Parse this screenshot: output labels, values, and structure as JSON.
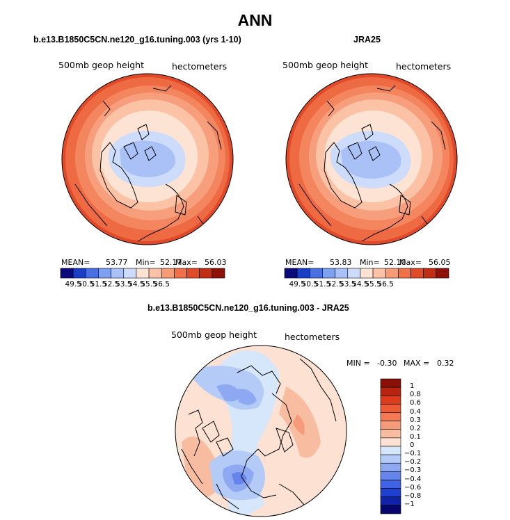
{
  "title": "ANN",
  "panels": [
    {
      "id": "model",
      "title": "b.e13.B1850C5CN.ne120_g16.tuning.003 (yrs 1-10)",
      "variable_label": "500mb geop height",
      "units_label": "hectometers",
      "stats": {
        "mean_label": "MEAN=",
        "mean": "53.77",
        "min_label": "Min=",
        "min": "52.17",
        "max_label": "Max=",
        "max": "56.03"
      }
    },
    {
      "id": "obs",
      "title": "JRA25",
      "variable_label": "500mb geop height",
      "units_label": "hectometers",
      "stats": {
        "mean_label": "MEAN=",
        "mean": "53.83",
        "min_label": "Min=",
        "min": "52.10",
        "max_label": "Max=",
        "max": "56.05"
      }
    },
    {
      "id": "diff",
      "title": "b.e13.B1850C5CN.ne120_g16.tuning.003 - JRA25",
      "variable_label": "500mb geop height",
      "units_label": "hectometers",
      "stats": {
        "min_label": "MIN =",
        "min": "-0.30",
        "max_label": "MAX =",
        "max": "0.32"
      }
    }
  ],
  "colorbar_top": {
    "ticks": [
      "49.5",
      "50.5",
      "51.5",
      "52.5",
      "53.5",
      "54.5",
      "55.5",
      "56.5"
    ],
    "colors": [
      "#0a0a7a",
      "#1a3fc4",
      "#4a6fe0",
      "#7f9ff0",
      "#a9c1f7",
      "#cddcfa",
      "#fde3d3",
      "#fbc2a6",
      "#f79b76",
      "#f0704a",
      "#e04a28",
      "#c22d16",
      "#8f1208"
    ]
  },
  "colorbar_diff": {
    "ticks": [
      "1",
      "0.8",
      "0.6",
      "0.4",
      "0.3",
      "0.2",
      "0.1",
      "0",
      "-0.1",
      "-0.2",
      "-0.3",
      "-0.4",
      "-0.6",
      "-0.8",
      "-1"
    ],
    "colors": [
      "#8a0f06",
      "#b8240f",
      "#dd3c1c",
      "#ee5a33",
      "#f37a55",
      "#f59b7a",
      "#f8bca0",
      "#fde1d2",
      "#d6e6fb",
      "#b4cbf7",
      "#8ea9f2",
      "#6585ec",
      "#3f63e4",
      "#1f3fcf",
      "#0f22a8",
      "#06066c"
    ]
  },
  "colors": {
    "ocean_far": "#e9693f",
    "mid": "#f59b76",
    "near": "#fde3d3",
    "low": "#b8cdf6",
    "lowest": "#a4bdf4",
    "coast": "#000000"
  }
}
